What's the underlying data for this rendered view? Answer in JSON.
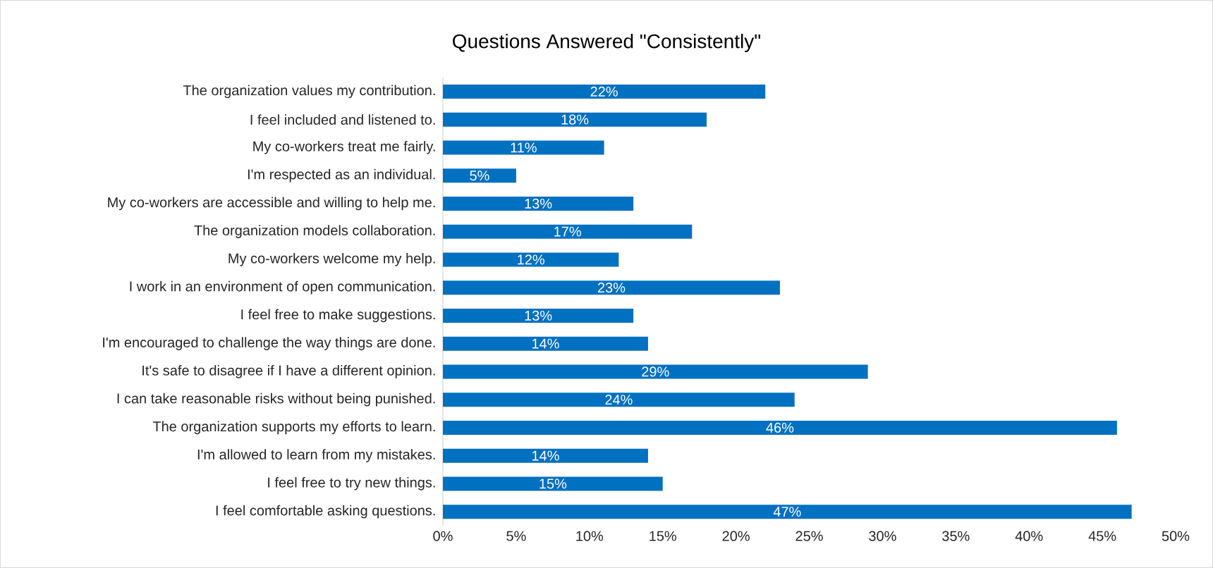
{
  "chart_data": {
    "type": "bar",
    "orientation": "horizontal",
    "title": "Questions Answered \"Consistently\"",
    "categories": [
      "The organization values my contribution.",
      "I feel included and listened to.",
      "My co-workers treat me fairly.",
      "I'm respected as an individual.",
      "My co-workers are accessible and willing to help me.",
      "The organization models collaboration.",
      "My co-workers welcome my help.",
      "I work in an environment of open communication.",
      "I feel free to make suggestions.",
      "I'm encouraged to challenge the way things are done.",
      "It's safe to disagree if I have a different opinion.",
      "I can take reasonable risks without being punished.",
      "The organization supports my efforts to learn.",
      "I'm allowed to learn from my mistakes.",
      "I feel free to try new things.",
      "I feel comfortable asking questions."
    ],
    "values": [
      22,
      18,
      11,
      5,
      13,
      17,
      12,
      23,
      13,
      14,
      29,
      24,
      46,
      14,
      15,
      47
    ],
    "value_labels": [
      "22%",
      "18%",
      "11%",
      "5%",
      "13%",
      "17%",
      "12%",
      "23%",
      "13%",
      "14%",
      "29%",
      "24%",
      "46%",
      "14%",
      "15%",
      "47%"
    ],
    "color": "#0070c0",
    "xlim": [
      0,
      50
    ],
    "xticks": [
      {
        "value": 0,
        "label": "0%"
      },
      {
        "value": 5,
        "label": "5%"
      },
      {
        "value": 10,
        "label": "10%"
      },
      {
        "value": 15,
        "label": "15%"
      },
      {
        "value": 20,
        "label": "20%"
      },
      {
        "value": 25,
        "label": "25%"
      },
      {
        "value": 30,
        "label": "30%"
      },
      {
        "value": 35,
        "label": "35%"
      },
      {
        "value": 40,
        "label": "40%"
      },
      {
        "value": 45,
        "label": "45%"
      },
      {
        "value": 50,
        "label": "50%"
      }
    ],
    "grid": false
  }
}
